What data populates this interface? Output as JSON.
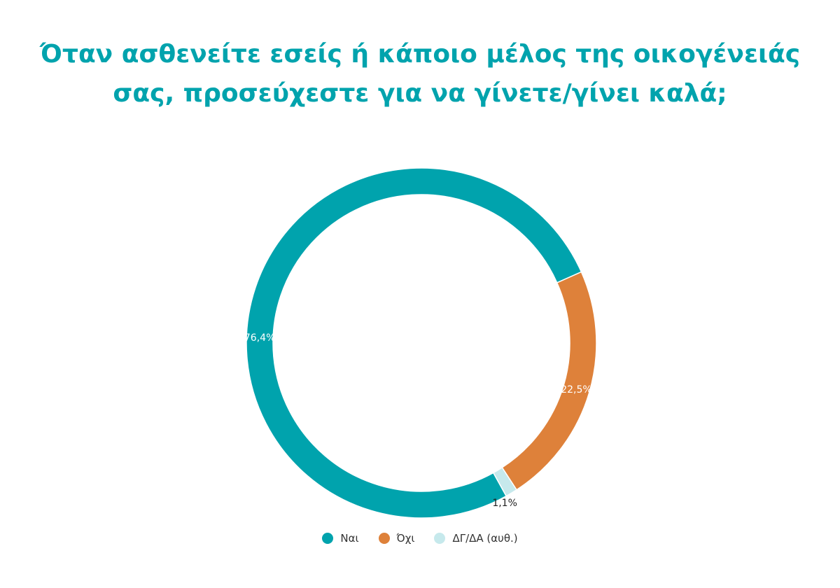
{
  "title": {
    "line1": "Όταν ασθενείτε εσείς ή κάποιο μέλος της οικογένειάς",
    "line2": "σας, προσεύχεστε για να γίνετε/γίνει καλά;"
  },
  "chart_data": {
    "type": "pie",
    "variant": "donut",
    "title": "Όταν ασθενείτε εσείς ή κάποιο μέλος της οικογένειάς σας, προσεύχεστε για να γίνετε/γίνει καλά;",
    "categories": [
      "Ναι",
      "Όχι",
      "ΔΓ/ΔΑ (αυθ.)"
    ],
    "values": [
      76.4,
      22.5,
      1.1
    ],
    "labels": [
      "76,4%",
      "22,5%",
      "1,1%"
    ],
    "colors": [
      "#00a3ad",
      "#de813a",
      "#c6e9ec"
    ],
    "label_colors": [
      "#ffffff",
      "#ffffff",
      "#222222"
    ],
    "legend_position": "bottom"
  }
}
